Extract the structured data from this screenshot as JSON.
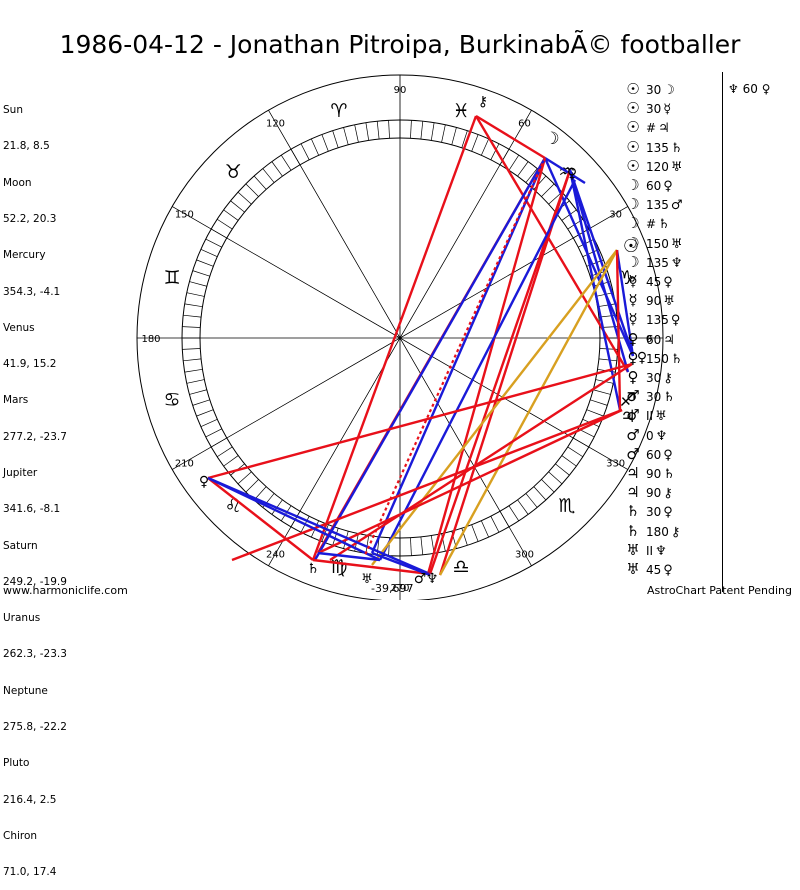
{
  "title": "1986-04-12 - Jonathan Pitroipa, BurkinabÃ© footballer",
  "planets": [
    {
      "name": "Sun",
      "coords": "21.8, 8.5",
      "glyph": "☉"
    },
    {
      "name": "Moon",
      "coords": "52.2, 20.3",
      "glyph": "☽"
    },
    {
      "name": "Mercury",
      "coords": "354.3, -4.1",
      "glyph": "☿"
    },
    {
      "name": "Venus",
      "coords": "41.9, 15.2",
      "glyph": "♀"
    },
    {
      "name": "Mars",
      "coords": "277.2, -23.7",
      "glyph": "♂"
    },
    {
      "name": "Jupiter",
      "coords": "341.6, -8.1",
      "glyph": "♃"
    },
    {
      "name": "Saturn",
      "coords": "249.2, -19.9",
      "glyph": "♄"
    },
    {
      "name": "Uranus",
      "coords": "262.3, -23.3",
      "glyph": "♅"
    },
    {
      "name": "Neptune",
      "coords": "275.8, -22.2",
      "glyph": "♆"
    },
    {
      "name": "Pluto",
      "coords": "216.4, 2.5",
      "glyph": "♀"
    },
    {
      "name": "Chiron",
      "coords": "71.0, 17.4",
      "glyph": "⚷"
    }
  ],
  "degree_labels": [
    "90",
    "60",
    "30",
    "0",
    "330",
    "300",
    "270",
    "240",
    "210",
    "180",
    "150",
    "120"
  ],
  "zodiac_glyphs": [
    "♈",
    "♉",
    "♊",
    "♋",
    "♌",
    "♍",
    "♎",
    "♏",
    "♐",
    "♑",
    "♒",
    "♓"
  ],
  "aspects": [
    {
      "p1": "☉",
      "angle": "30",
      "p2": "☽"
    },
    {
      "p1": "☉",
      "angle": "30",
      "p2": "☿"
    },
    {
      "p1": "☉",
      "angle": "#",
      "p2": "♃"
    },
    {
      "p1": "☉",
      "angle": "135",
      "p2": "♄"
    },
    {
      "p1": "☉",
      "angle": "120",
      "p2": "♅"
    },
    {
      "p1": "☽",
      "angle": "60",
      "p2": "♀"
    },
    {
      "p1": "☽",
      "angle": "135",
      "p2": "♂"
    },
    {
      "p1": "☽",
      "angle": "#",
      "p2": "♄"
    },
    {
      "p1": "☽",
      "angle": "150",
      "p2": "♅"
    },
    {
      "p1": "☽",
      "angle": "135",
      "p2": "♆"
    },
    {
      "p1": "☿",
      "angle": "45",
      "p2": "♀"
    },
    {
      "p1": "☿",
      "angle": "90",
      "p2": "♅"
    },
    {
      "p1": "☿",
      "angle": "135",
      "p2": "♀"
    },
    {
      "p1": "♀",
      "angle": "60",
      "p2": "♃"
    },
    {
      "p1": "♀",
      "angle": "150",
      "p2": "♄"
    },
    {
      "p1": "♀",
      "angle": "30",
      "p2": "⚷"
    },
    {
      "p1": "♂",
      "angle": "30",
      "p2": "♄"
    },
    {
      "p1": "♂",
      "angle": "II",
      "p2": "♅"
    },
    {
      "p1": "♂",
      "angle": "0",
      "p2": "♆"
    },
    {
      "p1": "♂",
      "angle": "60",
      "p2": "♀"
    },
    {
      "p1": "♃",
      "angle": "90",
      "p2": "♄"
    },
    {
      "p1": "♃",
      "angle": "90",
      "p2": "⚷"
    },
    {
      "p1": "♄",
      "angle": "30",
      "p2": "♀"
    },
    {
      "p1": "♄",
      "angle": "180",
      "p2": "⚷"
    },
    {
      "p1": "♅",
      "angle": "II",
      "p2": "♆"
    },
    {
      "p1": "♅",
      "angle": "45",
      "p2": "♀"
    }
  ],
  "extra_aspect": {
    "p1": "♆",
    "angle": "60",
    "p2": "♀"
  },
  "center_value": "-39,697",
  "footer_left": "www.harmoniclife.com",
  "footer_right": "AstroChart Patent Pending",
  "colors": {
    "red": "#e8101a",
    "blue": "#1a1ad8",
    "gold": "#d8a020"
  }
}
